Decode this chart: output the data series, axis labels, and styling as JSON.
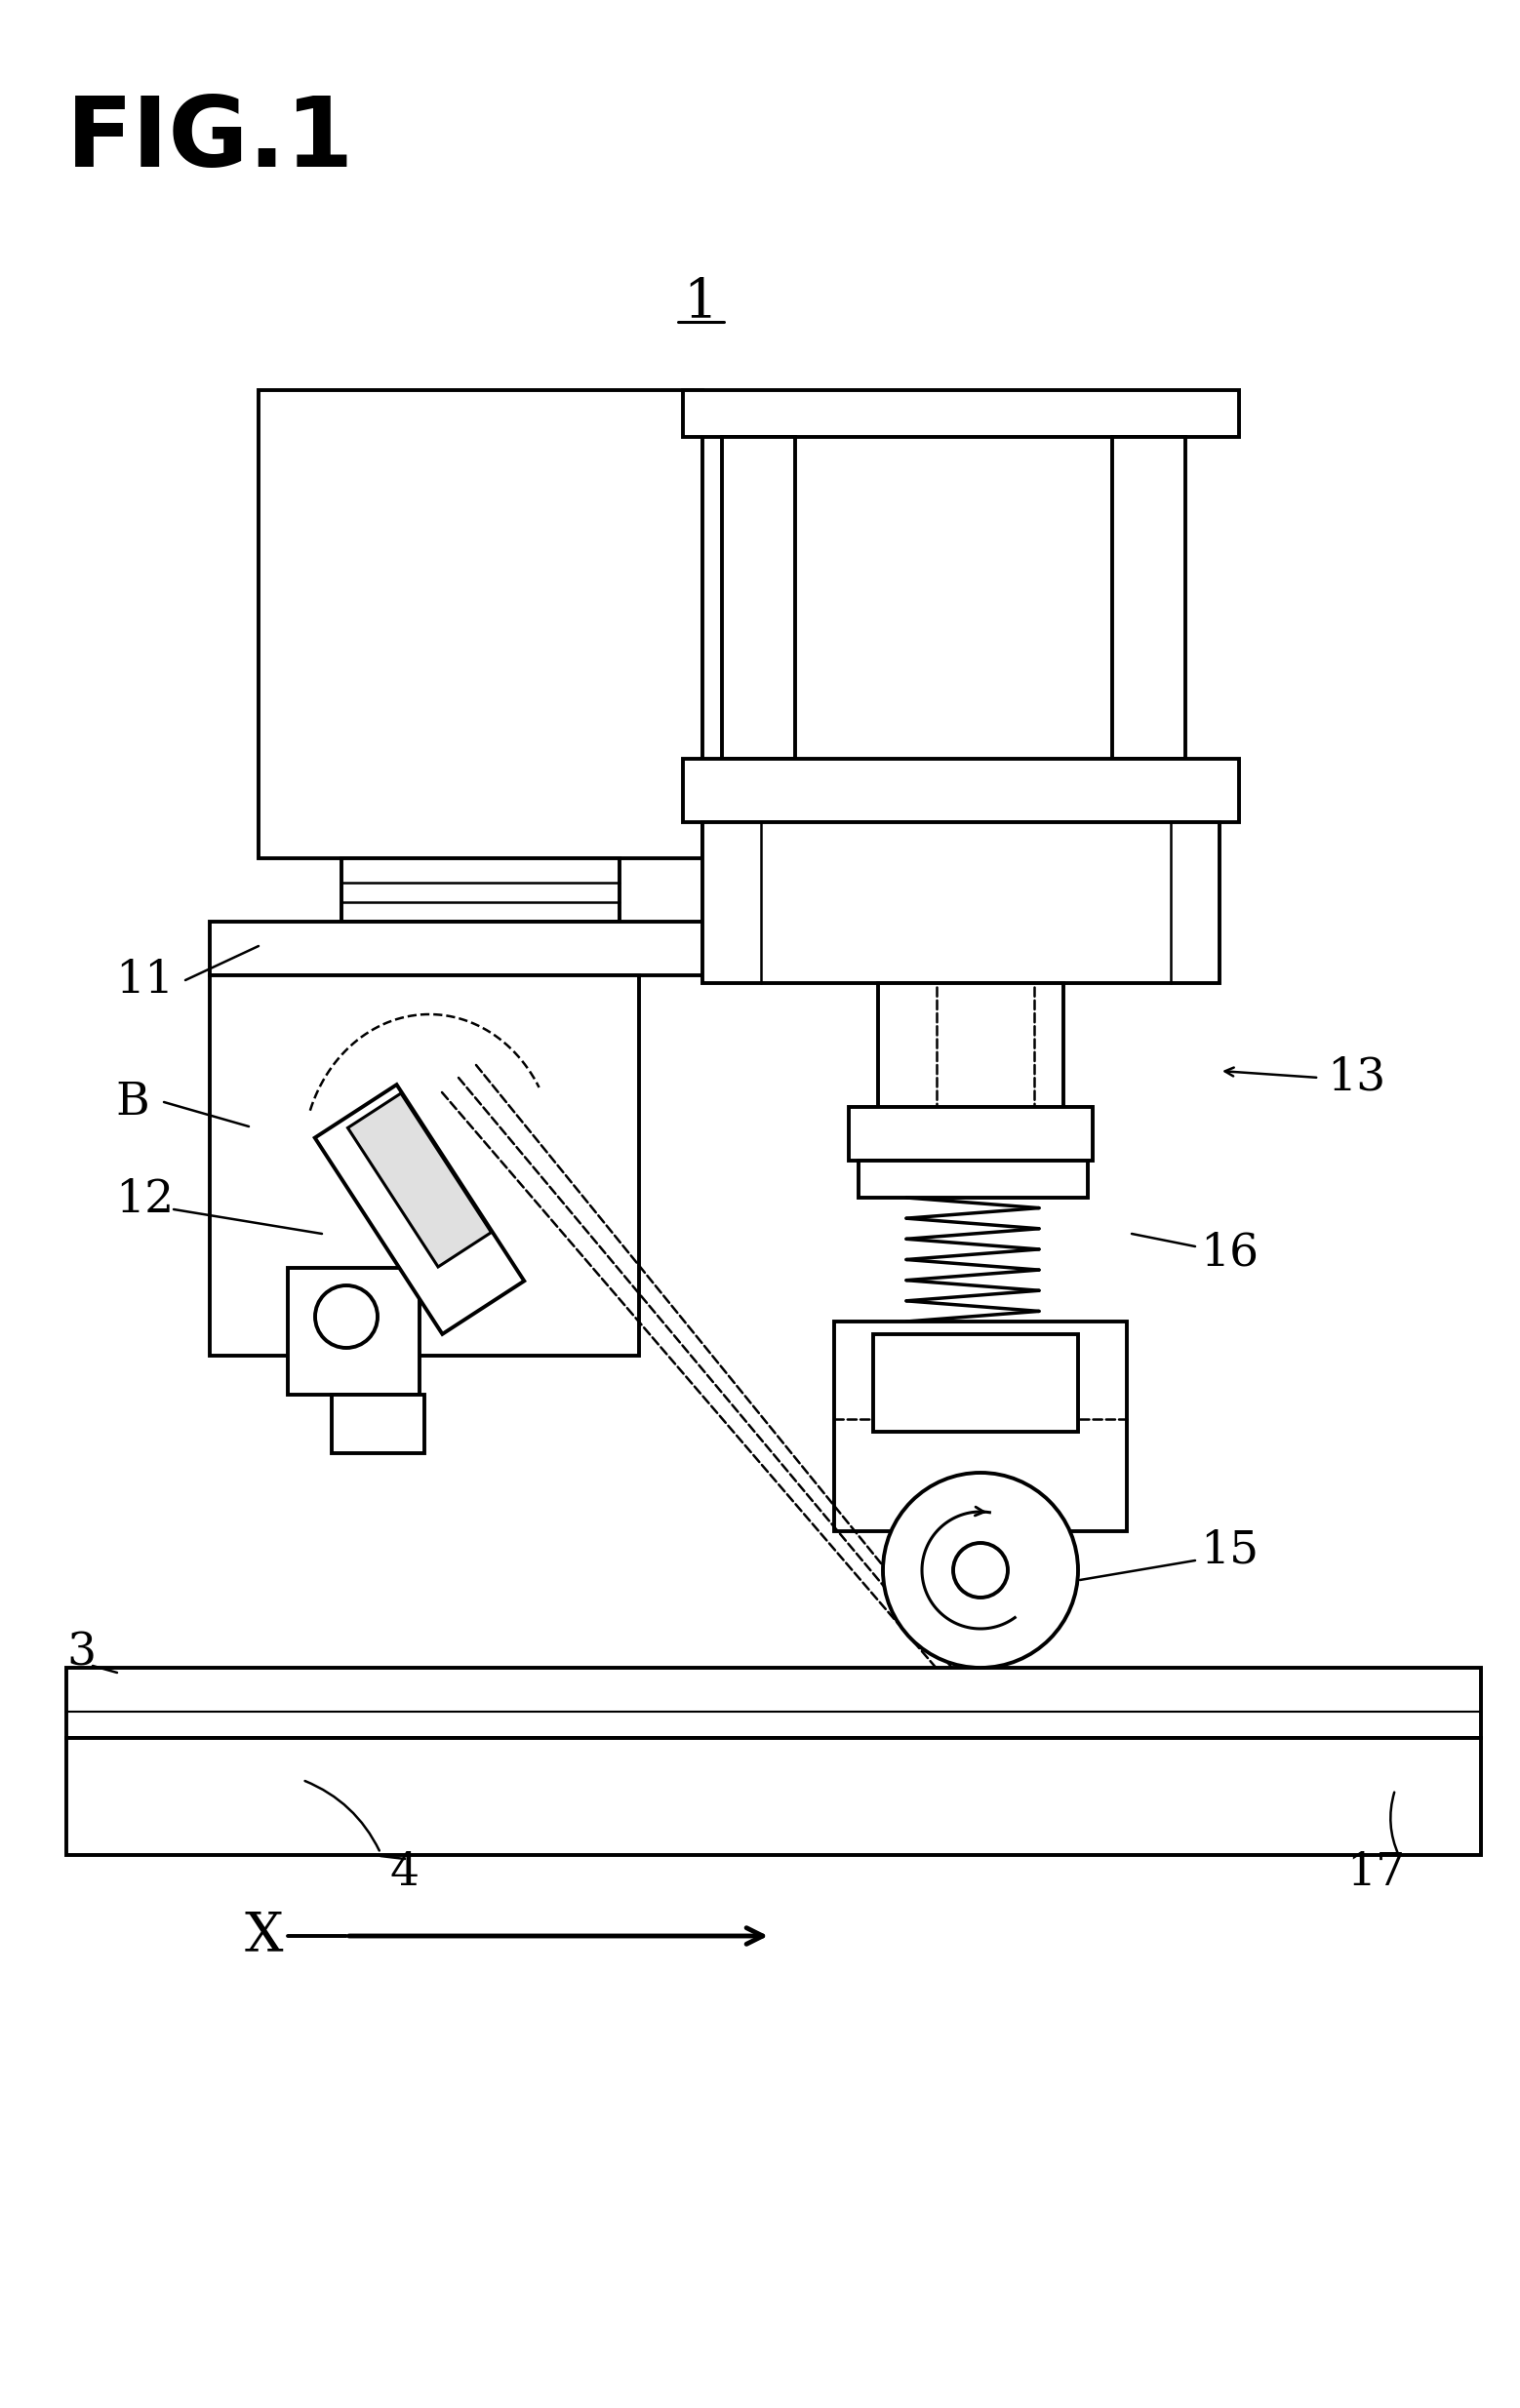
{
  "bg_color": "#ffffff",
  "line_color": "#000000",
  "fig_title": "FIG.1",
  "label_1": "1",
  "label_3": "3",
  "label_4": "4",
  "label_11": "11",
  "label_12": "12",
  "label_13": "13",
  "label_15": "15",
  "label_16": "16",
  "label_17": "17",
  "label_B": "B",
  "label_X": "X"
}
